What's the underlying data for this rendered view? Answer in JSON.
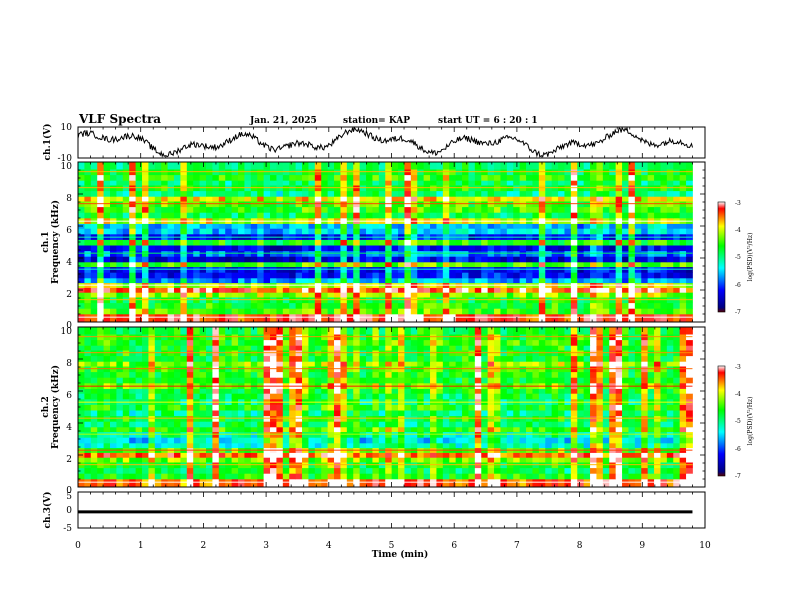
{
  "header": {
    "title": "VLF Spectra",
    "date": "Jan. 21, 2025",
    "station": "station= KAP",
    "start": "start UT = 6 : 20 : 1"
  },
  "colors": {
    "colormap": [
      "#5a0000",
      "#000080",
      "#0000ff",
      "#00ffff",
      "#00ff00",
      "#ffff00",
      "#ff0000",
      "#ffffff"
    ],
    "trace": "#000000"
  },
  "chart_data": [
    {
      "type": "line",
      "panel": "ch1-waveform",
      "ylabel": "ch.1(V)",
      "ylim": [
        -10,
        10
      ],
      "yticks": [
        "10",
        "-10"
      ],
      "xlim": [
        0,
        10
      ],
      "x_end": 9.8,
      "description_values": "noisy oscillating waveform between about -8 and 9 V"
    },
    {
      "type": "heatmap",
      "panel": "ch1-spectrogram",
      "ylabel_channel": "ch.1",
      "ylabel": "Frequency (kHz)",
      "ylim": [
        0,
        10
      ],
      "yticks": [
        "0",
        "2",
        "4",
        "6",
        "8",
        "10"
      ],
      "xlim": [
        0,
        10
      ],
      "x_end": 9.8,
      "colorbar": {
        "label": "log(PSD)(V²/Hz)",
        "range": [
          -7,
          -3
        ],
        "ticks": [
          "-3",
          "-4",
          "-5",
          "-6",
          "-7"
        ]
      },
      "bands": [
        {
          "f": 0.3,
          "v": -3.5
        },
        {
          "f": 0.7,
          "v": -4.6
        },
        {
          "f": 1.0,
          "v": -4.8
        },
        {
          "f": 1.4,
          "v": -4.9
        },
        {
          "f": 1.7,
          "v": -4.4
        },
        {
          "f": 2.0,
          "v": -3.5
        },
        {
          "f": 2.3,
          "v": -4.2
        },
        {
          "f": 2.6,
          "v": -5.9
        },
        {
          "f": 2.9,
          "v": -6.4
        },
        {
          "f": 3.3,
          "v": -6.5
        },
        {
          "f": 3.6,
          "v": -4.6
        },
        {
          "f": 3.9,
          "v": -6.6
        },
        {
          "f": 4.3,
          "v": -6.1
        },
        {
          "f": 4.6,
          "v": -6.5
        },
        {
          "f": 5.0,
          "v": -4.8
        },
        {
          "f": 5.3,
          "v": -6.4
        },
        {
          "f": 5.7,
          "v": -5.7
        },
        {
          "f": 6.0,
          "v": -5.8
        },
        {
          "f": 6.3,
          "v": -4.2
        },
        {
          "f": 6.7,
          "v": -5.0
        },
        {
          "f": 7.0,
          "v": -4.7
        },
        {
          "f": 7.4,
          "v": -4.6
        },
        {
          "f": 7.7,
          "v": -4.1
        },
        {
          "f": 8.0,
          "v": -5.2
        },
        {
          "f": 8.4,
          "v": -4.9
        },
        {
          "f": 8.7,
          "v": -5.1
        },
        {
          "f": 9.0,
          "v": -4.8
        },
        {
          "f": 9.4,
          "v": -4.9
        },
        {
          "f": 9.7,
          "v": -5.1
        }
      ]
    },
    {
      "type": "heatmap",
      "panel": "ch2-spectrogram",
      "ylabel_channel": "ch.2",
      "ylabel": "Frequency (kHz)",
      "ylim": [
        0,
        10
      ],
      "yticks": [
        "0",
        "2",
        "4",
        "6",
        "8",
        "10"
      ],
      "xlim": [
        0,
        10
      ],
      "x_end": 9.8,
      "colorbar": {
        "label": "log(PSD)(V²/Hz)",
        "range": [
          -7,
          -3
        ],
        "ticks": [
          "-3",
          "-4",
          "-5",
          "-6",
          "-7"
        ]
      },
      "bands": [
        {
          "f": 0.3,
          "v": -3.6
        },
        {
          "f": 0.7,
          "v": -4.8
        },
        {
          "f": 1.0,
          "v": -5.0
        },
        {
          "f": 1.4,
          "v": -4.9
        },
        {
          "f": 1.7,
          "v": -4.5
        },
        {
          "f": 2.0,
          "v": -3.7
        },
        {
          "f": 2.3,
          "v": -4.6
        },
        {
          "f": 2.6,
          "v": -5.4
        },
        {
          "f": 2.9,
          "v": -5.6
        },
        {
          "f": 3.3,
          "v": -5.3
        },
        {
          "f": 3.6,
          "v": -4.7
        },
        {
          "f": 3.9,
          "v": -5.1
        },
        {
          "f": 4.3,
          "v": -4.9
        },
        {
          "f": 4.6,
          "v": -5.2
        },
        {
          "f": 5.0,
          "v": -4.8
        },
        {
          "f": 5.3,
          "v": -5.1
        },
        {
          "f": 5.7,
          "v": -5.0
        },
        {
          "f": 6.0,
          "v": -4.9
        },
        {
          "f": 6.3,
          "v": -4.5
        },
        {
          "f": 6.7,
          "v": -4.9
        },
        {
          "f": 7.0,
          "v": -4.8
        },
        {
          "f": 7.4,
          "v": -4.7
        },
        {
          "f": 7.7,
          "v": -4.4
        },
        {
          "f": 8.0,
          "v": -4.9
        },
        {
          "f": 8.4,
          "v": -4.8
        },
        {
          "f": 8.7,
          "v": -4.9
        },
        {
          "f": 9.0,
          "v": -4.7
        },
        {
          "f": 9.4,
          "v": -4.8
        },
        {
          "f": 9.7,
          "v": -4.9
        }
      ]
    },
    {
      "type": "line",
      "panel": "ch3-waveform",
      "ylabel": "ch.3(V)",
      "ylim": [
        -5,
        5
      ],
      "yticks": [
        "5",
        "0",
        "-5"
      ],
      "xlim": [
        0,
        10
      ],
      "x_end": 9.8,
      "level": -0.5,
      "band_halfwidth": 0.4
    }
  ],
  "xaxis": {
    "label": "Time (min)",
    "ticks": [
      "0",
      "1",
      "2",
      "3",
      "4",
      "5",
      "6",
      "7",
      "8",
      "9",
      "10"
    ]
  }
}
